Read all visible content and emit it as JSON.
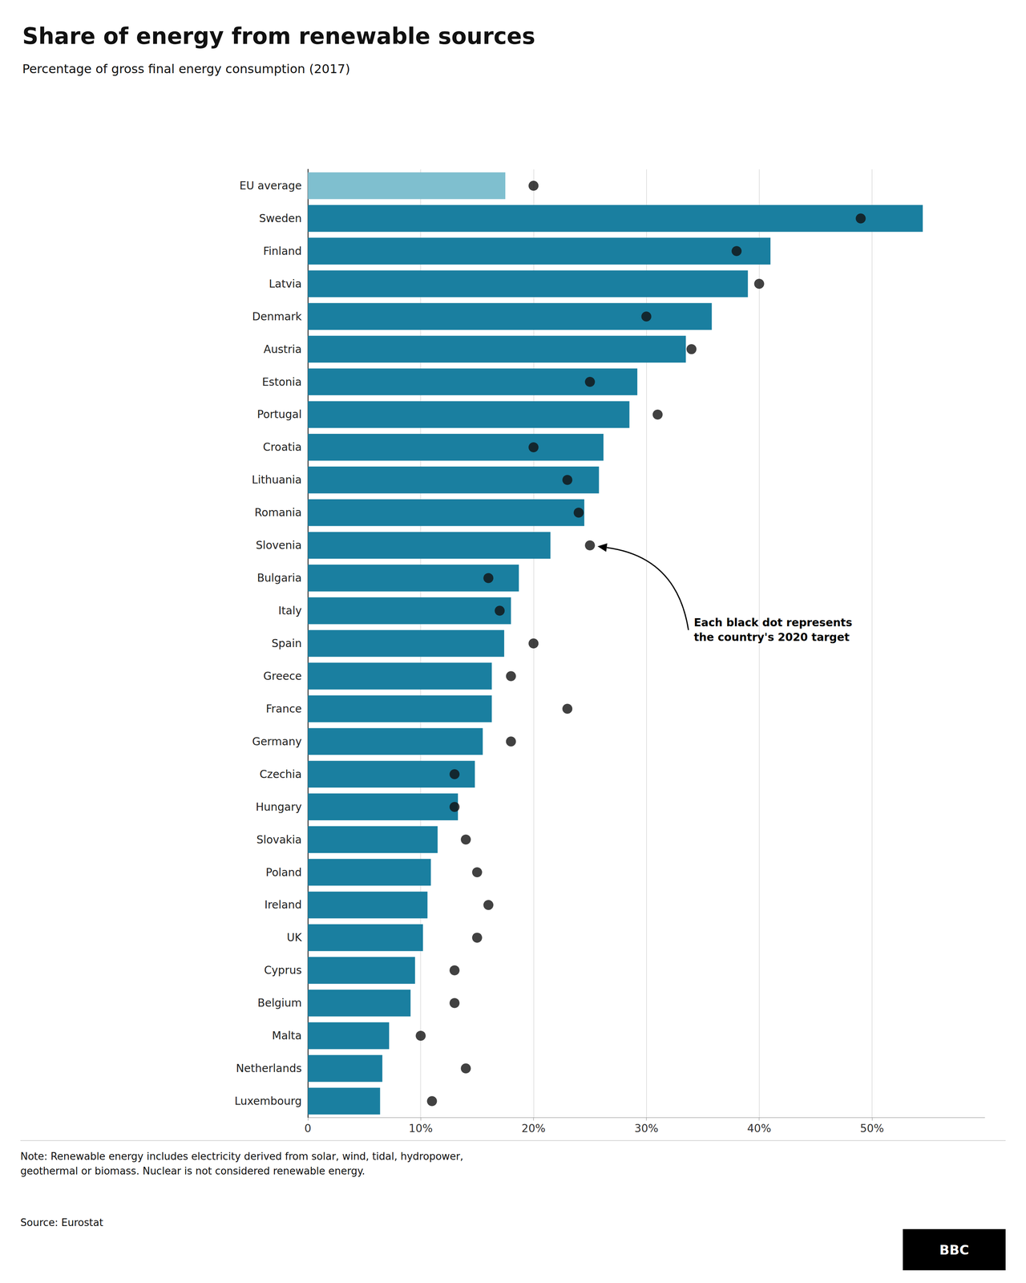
{
  "chart_data": {
    "type": "bar",
    "orientation": "horizontal",
    "title": "Share of energy from renewable sources",
    "subtitle": "Percentage of gross final energy consumption (2017)",
    "note": "Note: Renewable energy includes electricity derived from solar, wind, tidal, hydropower,\ngeothermal or biomass. Nuclear is not considered renewable energy.",
    "source": "Source: Eurostat",
    "credit": "BBC",
    "categories": [
      "EU average",
      "Sweden",
      "Finland",
      "Latvia",
      "Denmark",
      "Austria",
      "Estonia",
      "Portugal",
      "Croatia",
      "Lithuania",
      "Romania",
      "Slovenia",
      "Bulgaria",
      "Italy",
      "Spain",
      "Greece",
      "France",
      "Germany",
      "Czechia",
      "Hungary",
      "Slovakia",
      "Poland",
      "Ireland",
      "UK",
      "Cyprus",
      "Belgium",
      "Malta",
      "Netherlands",
      "Luxembourg"
    ],
    "series": [
      {
        "type": "bar",
        "values": [
          17.5,
          54.5,
          41.0,
          39.0,
          35.8,
          33.5,
          29.2,
          28.5,
          26.2,
          25.8,
          24.5,
          21.5,
          18.7,
          18.0,
          17.4,
          16.3,
          16.3,
          15.5,
          14.8,
          13.3,
          11.5,
          10.9,
          10.6,
          10.2,
          9.5,
          9.1,
          7.2,
          6.6,
          6.4
        ],
        "colors": [
          "#7fbfcf",
          "#1a7fa0",
          "#1a7fa0",
          "#1a7fa0",
          "#1a7fa0",
          "#1a7fa0",
          "#1a7fa0",
          "#1a7fa0",
          "#1a7fa0",
          "#1a7fa0",
          "#1a7fa0",
          "#1a7fa0",
          "#1a7fa0",
          "#1a7fa0",
          "#1a7fa0",
          "#1a7fa0",
          "#1a7fa0",
          "#1a7fa0",
          "#1a7fa0",
          "#1a7fa0",
          "#1a7fa0",
          "#1a7fa0",
          "#1a7fa0",
          "#1a7fa0",
          "#1a7fa0",
          "#1a7fa0",
          "#1a7fa0",
          "#1a7fa0",
          "#1a7fa0"
        ]
      },
      {
        "type": "scatter",
        "values": [
          20.0,
          49.0,
          38.0,
          40.0,
          30.0,
          34.0,
          25.0,
          31.0,
          20.0,
          23.0,
          24.0,
          25.0,
          16.0,
          17.0,
          20.0,
          18.0,
          23.0,
          18.0,
          13.0,
          13.0,
          14.0,
          15.0,
          16.0,
          15.0,
          13.0,
          13.0,
          10.0,
          14.0,
          11.0
        ],
        "color": "#111111",
        "marker": "circle"
      }
    ],
    "xlim": [
      0,
      60
    ],
    "xticks": [
      0,
      {
        "value": 10,
        "label": "10%"
      },
      {
        "value": 20,
        "label": "20%"
      },
      {
        "value": 30,
        "label": "30%"
      },
      {
        "value": 40,
        "label": "40%"
      },
      {
        "value": 50,
        "label": "50%"
      }
    ],
    "grid": true,
    "annotations": [
      {
        "text": "Each black dot represents\nthe country's 2020 target",
        "x": 25.0,
        "category": "Slovenia"
      }
    ]
  }
}
